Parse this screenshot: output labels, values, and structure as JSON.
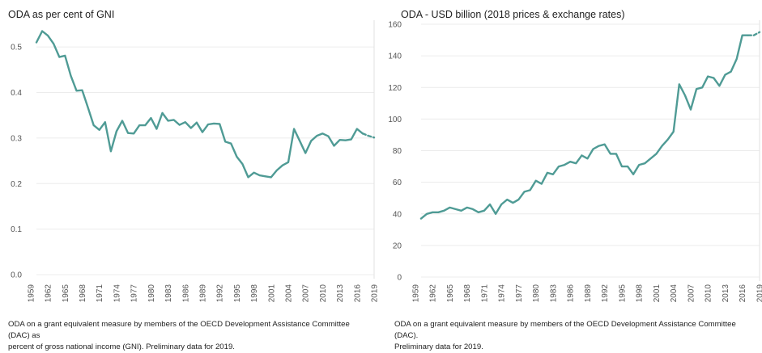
{
  "charts": {
    "left": {
      "title": "ODA as per cent of GNI",
      "note_lines": [
        "ODA on a grant equivalent measure by members of the OECD Development Assistance Committee (DAC) as",
        "percent of gross national income (GNI).  Preliminary data for 2019."
      ]
    },
    "right": {
      "title": "ODA - USD billion (2018 prices & exchange rates)",
      "note_lines": [
        "ODA on a grant equivalent measure by members of the OECD Development Assistance Committee (DAC).",
        "Preliminary data for 2019."
      ]
    }
  },
  "chart_data": [
    {
      "id": "left",
      "type": "line",
      "title": "ODA as per cent of GNI",
      "color": "#4f9b95",
      "grid": true,
      "xlim": [
        1960,
        2019
      ],
      "ylim": [
        0,
        0.55
      ],
      "x_ticks": [
        "1959",
        "1962",
        "1965",
        "1968",
        "1971",
        "1974",
        "1977",
        "1980",
        "1983",
        "1986",
        "1989",
        "1992",
        "1995",
        "1998",
        "2001",
        "2004",
        "2007",
        "2010",
        "2013",
        "2016",
        "2019"
      ],
      "y_ticks": [
        "0.0",
        "0.1",
        "0.2",
        "0.3",
        "0.4",
        "0.5"
      ],
      "series": [
        {
          "x": [
            1960,
            1961,
            1962,
            1963,
            1964,
            1965,
            1966,
            1967,
            1968,
            1969,
            1970,
            1971,
            1972,
            1973,
            1974,
            1975,
            1976,
            1977,
            1978,
            1979,
            1980,
            1981,
            1982,
            1983,
            1984,
            1985,
            1986,
            1987,
            1988,
            1989,
            1990,
            1991,
            1992,
            1993,
            1994,
            1995,
            1996,
            1997,
            1998,
            1999,
            2000,
            2001,
            2002,
            2003,
            2004,
            2005,
            2006,
            2007,
            2008,
            2009,
            2010,
            2011,
            2012,
            2013,
            2014,
            2015,
            2016,
            2017
          ],
          "y": [
            0.51,
            0.535,
            0.525,
            0.507,
            0.478,
            0.481,
            0.437,
            0.404,
            0.405,
            0.367,
            0.328,
            0.318,
            0.335,
            0.271,
            0.315,
            0.338,
            0.311,
            0.31,
            0.328,
            0.328,
            0.344,
            0.32,
            0.355,
            0.338,
            0.34,
            0.329,
            0.335,
            0.322,
            0.334,
            0.313,
            0.33,
            0.332,
            0.331,
            0.292,
            0.288,
            0.259,
            0.243,
            0.214,
            0.224,
            0.218,
            0.216,
            0.214,
            0.229,
            0.24,
            0.247,
            0.32,
            0.294,
            0.267,
            0.294,
            0.305,
            0.31,
            0.304,
            0.283,
            0.296,
            0.295,
            0.297,
            0.32,
            0.31
          ]
        },
        {
          "dashed": true,
          "x": [
            2017,
            2018,
            2019
          ],
          "y": [
            0.31,
            0.305,
            0.301
          ]
        }
      ]
    },
    {
      "id": "right",
      "type": "line",
      "title": "ODA - USD billion (2018 prices & exchange rates)",
      "color": "#4f9b95",
      "grid": true,
      "xlim": [
        1960,
        2019
      ],
      "ylim": [
        0,
        160
      ],
      "x_ticks": [
        "1959",
        "1962",
        "1965",
        "1968",
        "1971",
        "1974",
        "1977",
        "1980",
        "1983",
        "1986",
        "1989",
        "1992",
        "1995",
        "1998",
        "2001",
        "2004",
        "2007",
        "2010",
        "2013",
        "2016",
        "2019"
      ],
      "y_ticks": [
        "0",
        "20",
        "40",
        "60",
        "80",
        "100",
        "120",
        "140",
        "160"
      ],
      "series": [
        {
          "x": [
            1960,
            1961,
            1962,
            1963,
            1964,
            1965,
            1966,
            1967,
            1968,
            1969,
            1970,
            1971,
            1972,
            1973,
            1974,
            1975,
            1976,
            1977,
            1978,
            1979,
            1980,
            1981,
            1982,
            1983,
            1984,
            1985,
            1986,
            1987,
            1988,
            1989,
            1990,
            1991,
            1992,
            1993,
            1994,
            1995,
            1996,
            1997,
            1998,
            1999,
            2000,
            2001,
            2002,
            2003,
            2004,
            2005,
            2006,
            2007,
            2008,
            2009,
            2010,
            2011,
            2012,
            2013,
            2014,
            2015,
            2016,
            2017
          ],
          "y": [
            37,
            40,
            41,
            41,
            42,
            44,
            43,
            42,
            44,
            43,
            41,
            42,
            46,
            40,
            46,
            49,
            47,
            49,
            54,
            55,
            61,
            59,
            66,
            65,
            70,
            71,
            73,
            72,
            77,
            75,
            81,
            83,
            84,
            78,
            78,
            70,
            70,
            65,
            71,
            72,
            75,
            78,
            83,
            87,
            92,
            122,
            115,
            106,
            119,
            120,
            127,
            126,
            121,
            128,
            130,
            138,
            153,
            153
          ]
        },
        {
          "dashed": true,
          "x": [
            2017,
            2018,
            2019
          ],
          "y": [
            153,
            153,
            155
          ]
        }
      ]
    }
  ]
}
